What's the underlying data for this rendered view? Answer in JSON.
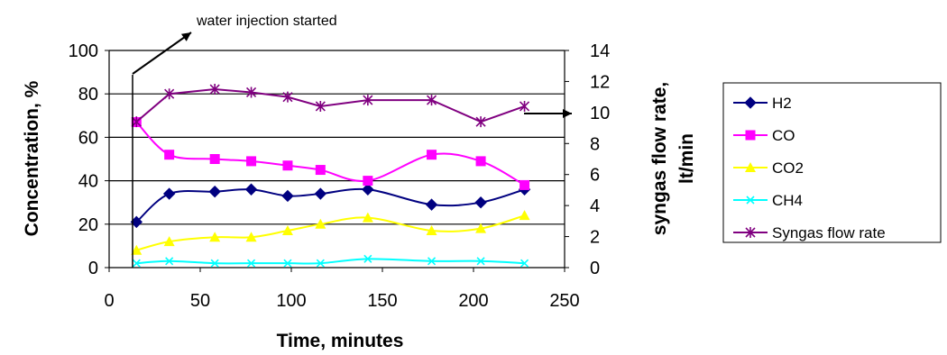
{
  "chart_data": {
    "type": "line",
    "xlabel": "Time, minutes",
    "ylabel": "Concentration, %",
    "y2label_line1": "syngas flow rate,",
    "y2label_line2": "lt/min",
    "xlim": [
      0,
      250
    ],
    "ylim": [
      0,
      100
    ],
    "y2lim": [
      0,
      14
    ],
    "x_ticks": [
      "0",
      "50",
      "100",
      "150",
      "200",
      "250"
    ],
    "y_ticks": [
      "0",
      "20",
      "40",
      "60",
      "80",
      "100"
    ],
    "y2_ticks": [
      "0",
      "2",
      "4",
      "6",
      "8",
      "10",
      "12",
      "14"
    ],
    "grid": "horizontal",
    "legend_position": "right",
    "annotation": "water injection started",
    "x": [
      15,
      33,
      58,
      78,
      98,
      116,
      142,
      177,
      204,
      228
    ],
    "series": [
      {
        "name": "H2",
        "axis": "left",
        "marker": "diamond",
        "color": "#000080",
        "values": [
          21,
          34,
          35,
          36,
          33,
          34,
          36,
          29,
          30,
          36
        ]
      },
      {
        "name": "CO",
        "axis": "left",
        "marker": "square",
        "color": "#ff00ff",
        "values": [
          67,
          52,
          50,
          49,
          47,
          45,
          40,
          52,
          49,
          38
        ]
      },
      {
        "name": "CO2",
        "axis": "left",
        "marker": "triangle",
        "color": "#ffff00",
        "values": [
          8,
          12,
          14,
          14,
          17,
          20,
          23,
          17,
          18,
          24
        ]
      },
      {
        "name": "CH4",
        "axis": "left",
        "marker": "x",
        "color": "#00ffff",
        "values": [
          2,
          3,
          2,
          2,
          2,
          2,
          4,
          3,
          3,
          2
        ]
      },
      {
        "name": "Syngas flow rate",
        "axis": "right",
        "marker": "star",
        "color": "#800080",
        "values": [
          9.4,
          11.2,
          11.5,
          11.3,
          11.0,
          10.4,
          10.8,
          10.8,
          9.4,
          10.4
        ]
      }
    ]
  }
}
